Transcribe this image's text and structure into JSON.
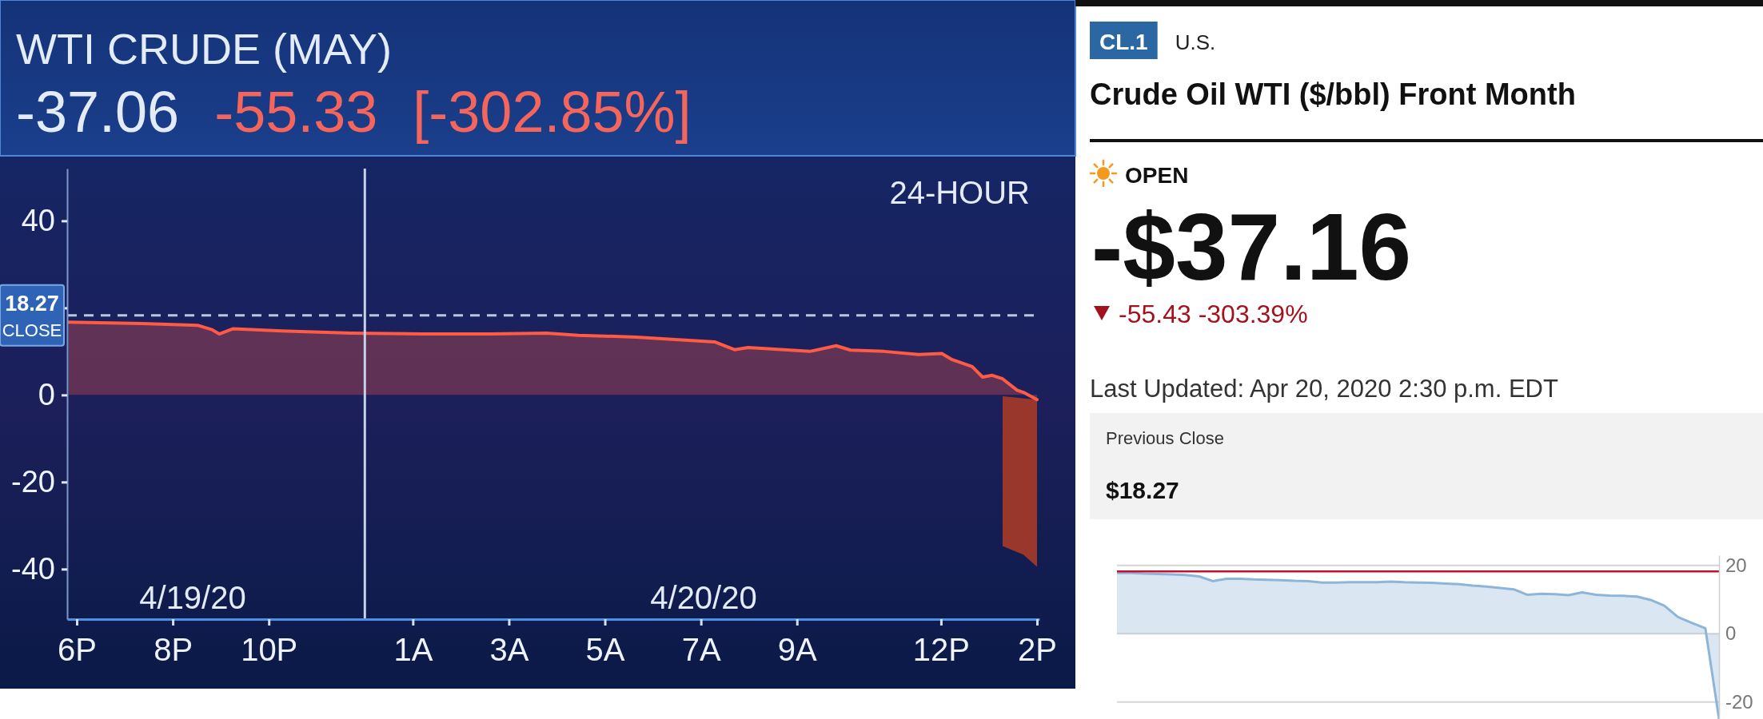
{
  "chart_data": [
    {
      "type": "area",
      "title": "WTI CRUDE (MAY)",
      "subtitle": "-37.06",
      "annotations": [
        "-55.33",
        "[-302.85%]",
        "24-HOUR",
        "4/19/20",
        "4/20/20"
      ],
      "x": [
        "2020-04-19T17:50",
        "2020-04-19T19:22",
        "2020-04-19T20:31",
        "2020-04-19T20:49",
        "2020-04-19T20:58",
        "2020-04-19T21:15",
        "2020-04-19T22:16",
        "2020-04-19T23:43",
        "2020-04-20T01:11",
        "2020-04-20T02:37",
        "2020-04-20T03:47",
        "2020-04-20T04:27",
        "2020-04-20T05:39",
        "2020-04-20T07:17",
        "2020-04-20T07:42",
        "2020-04-20T07:59",
        "2020-04-20T09:16",
        "2020-04-20T09:49",
        "2020-04-20T10:07",
        "2020-04-20T10:49",
        "2020-04-20T11:32",
        "2020-04-20T12:01",
        "2020-04-20T12:14",
        "2020-04-20T12:39",
        "2020-04-20T12:52",
        "2020-04-20T13:04",
        "2020-04-20T13:17",
        "2020-04-20T13:35",
        "2020-04-20T13:43",
        "2020-04-20T14:00"
      ],
      "series": [
        {
          "color": "#ff5a44",
          "values": [
            16.7,
            16.4,
            16.0,
            15.0,
            14.0,
            15.2,
            14.7,
            14.2,
            14.0,
            14.0,
            14.2,
            13.7,
            13.3,
            12.2,
            10.4,
            10.9,
            10.0,
            11.3,
            10.3,
            10.0,
            9.3,
            9.5,
            8.1,
            6.5,
            4.1,
            4.5,
            3.7,
            1.1,
            0.6,
            -1.1
          ],
          "lower": [
            null,
            null,
            null,
            null,
            null,
            null,
            null,
            null,
            null,
            null,
            null,
            null,
            null,
            null,
            null,
            null,
            null,
            null,
            null,
            null,
            null,
            null,
            null,
            null,
            null,
            null,
            -34.7,
            -36.1,
            -36.7,
            -39.5
          ],
          "upper": [
            null,
            null,
            null,
            null,
            null,
            null,
            null,
            null,
            null,
            null,
            null,
            null,
            null,
            null,
            null,
            null,
            null,
            null,
            null,
            null,
            null,
            null,
            null,
            null,
            null,
            null,
            -0.3,
            -0.6,
            -0.8,
            -1.1
          ]
        }
      ],
      "xlim": [
        "2020-04-19T17:48",
        "2020-04-20T14:03"
      ],
      "ylim": [
        -51.5,
        52
      ],
      "xticks": [
        {
          "value": "2020-04-19T18:00",
          "label": "6P"
        },
        {
          "value": "2020-04-19T20:00",
          "label": "8P"
        },
        {
          "value": "2020-04-19T22:00",
          "label": "10P"
        },
        {
          "value": "2020-04-20T01:00",
          "label": "1A"
        },
        {
          "value": "2020-04-20T03:00",
          "label": "3A"
        },
        {
          "value": "2020-04-20T05:00",
          "label": "5A"
        },
        {
          "value": "2020-04-20T07:00",
          "label": "7A"
        },
        {
          "value": "2020-04-20T09:00",
          "label": "9A"
        },
        {
          "value": "2020-04-20T12:00",
          "label": "12P"
        },
        {
          "value": "2020-04-20T14:00",
          "label": "2P"
        }
      ],
      "yticks": [
        -40,
        -20,
        0,
        {
          "value": 20,
          "label": null
        },
        40
      ],
      "ref_lines": [
        {
          "axis": "y",
          "value": 18.27,
          "label": "18.27 CLOSE",
          "color": "#b9c7e0",
          "line_style": "dashed"
        },
        {
          "axis": "x",
          "value": "2020-04-20T00:00",
          "color": "#c5d3ea"
        }
      ]
    },
    {
      "type": "other",
      "title": "Crude Oil WTI ($/bbl) Front Month",
      "annotations": [
        "CL.1",
        "U.S.",
        "OPEN",
        "-$37.16",
        "-55.43 -303.39%",
        "Last Updated: Apr 20, 2020 2:30 p.m. EDT",
        "Previous Close",
        "$18.27"
      ]
    },
    {
      "type": "area",
      "categories": [
        null,
        null,
        null,
        null,
        null,
        null,
        null,
        null,
        null,
        null,
        null,
        null,
        null,
        null,
        null,
        null,
        null,
        null,
        null,
        null,
        null,
        null,
        null,
        null,
        null,
        null,
        null,
        null,
        null,
        null,
        null,
        null,
        null,
        null,
        null,
        null,
        null,
        null,
        null,
        null,
        null,
        null,
        null,
        null,
        null
      ],
      "series": [
        {
          "color": "#8db5da",
          "values": [
            17.8,
            17.8,
            17.6,
            17.5,
            17.4,
            17.2,
            16.8,
            15.4,
            16.1,
            16.1,
            15.9,
            15.8,
            15.7,
            15.5,
            15.4,
            15.0,
            15.0,
            15.1,
            15.1,
            15.1,
            15.3,
            15.1,
            15.0,
            14.9,
            14.7,
            14.5,
            14.1,
            13.8,
            13.4,
            13.0,
            11.4,
            11.7,
            11.6,
            11.3,
            12.1,
            11.4,
            11.2,
            11.1,
            10.9,
            9.9,
            8.2,
            4.9,
            3.2,
            1.6,
            -25
          ]
        }
      ],
      "ylim": [
        -25,
        23
      ],
      "yticks": [
        -20,
        0,
        20
      ],
      "grid": "y",
      "ref_lines": [
        {
          "axis": "y",
          "value": 18.27,
          "color": "#c8102e"
        }
      ]
    }
  ]
}
